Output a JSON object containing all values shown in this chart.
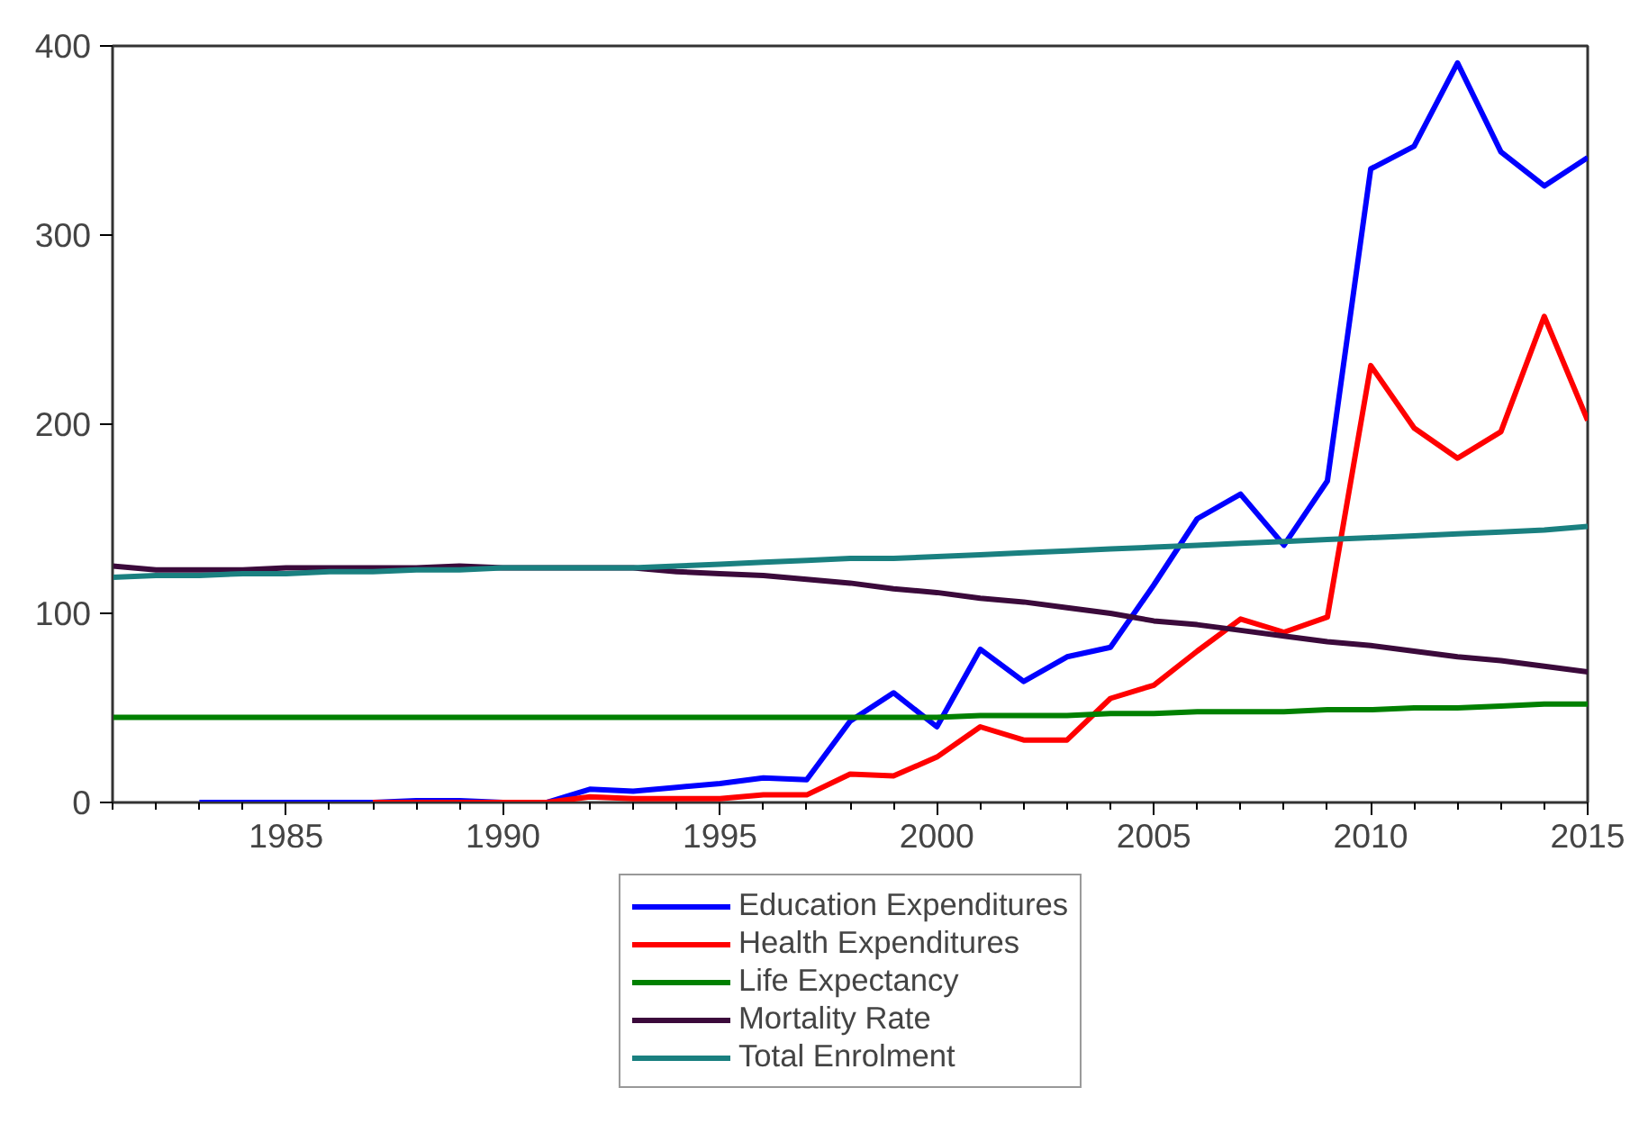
{
  "chart_data": {
    "type": "line",
    "x": [
      1981,
      1982,
      1983,
      1984,
      1985,
      1986,
      1987,
      1988,
      1989,
      1990,
      1991,
      1992,
      1993,
      1994,
      1995,
      1996,
      1997,
      1998,
      1999,
      2000,
      2001,
      2002,
      2003,
      2004,
      2005,
      2006,
      2007,
      2008,
      2009,
      2010,
      2011,
      2012,
      2013,
      2014,
      2015
    ],
    "series": [
      {
        "name": "Education Expenditures",
        "color": "#0000ff",
        "values": [
          null,
          null,
          0,
          0,
          0,
          0,
          0,
          1,
          1,
          0,
          0,
          7,
          6,
          8,
          10,
          13,
          12,
          43,
          58,
          40,
          81,
          64,
          77,
          82,
          115,
          150,
          163,
          136,
          170,
          335,
          347,
          391,
          344,
          326,
          341
        ]
      },
      {
        "name": "Health Expenditures",
        "color": "#ff0000",
        "values": [
          null,
          null,
          null,
          null,
          null,
          null,
          0,
          0,
          0,
          0,
          0,
          3,
          2,
          2,
          2,
          4,
          4,
          15,
          14,
          24,
          40,
          33,
          33,
          55,
          62,
          80,
          97,
          90,
          98,
          231,
          198,
          182,
          196,
          257,
          202
        ]
      },
      {
        "name": "Life Expectancy",
        "color": "#008000",
        "values": [
          45,
          45,
          45,
          45,
          45,
          45,
          45,
          45,
          45,
          45,
          45,
          45,
          45,
          45,
          45,
          45,
          45,
          45,
          45,
          45,
          46,
          46,
          46,
          47,
          47,
          48,
          48,
          48,
          49,
          49,
          50,
          50,
          51,
          52,
          52
        ]
      },
      {
        "name": "Mortality Rate",
        "color": "#3b0a3b",
        "values": [
          125,
          123,
          123,
          123,
          124,
          124,
          124,
          124,
          125,
          124,
          124,
          124,
          124,
          122,
          121,
          120,
          118,
          116,
          113,
          111,
          108,
          106,
          103,
          100,
          96,
          94,
          91,
          88,
          85,
          83,
          80,
          77,
          75,
          72,
          69
        ]
      },
      {
        "name": "Total Enrolment",
        "color": "#1a8080",
        "values": [
          119,
          120,
          120,
          121,
          121,
          122,
          122,
          123,
          123,
          124,
          124,
          124,
          124,
          125,
          126,
          127,
          128,
          129,
          129,
          130,
          131,
          132,
          133,
          134,
          135,
          136,
          137,
          138,
          139,
          140,
          141,
          142,
          143,
          144,
          146
        ]
      }
    ],
    "xlim": [
      1981,
      2015
    ],
    "xticks": [
      1985,
      1990,
      1995,
      2000,
      2005,
      2010,
      2015
    ],
    "ylim": [
      0,
      400
    ],
    "yticks": [
      0,
      100,
      200,
      300,
      400
    ],
    "grid": false,
    "legend": "bottom"
  }
}
